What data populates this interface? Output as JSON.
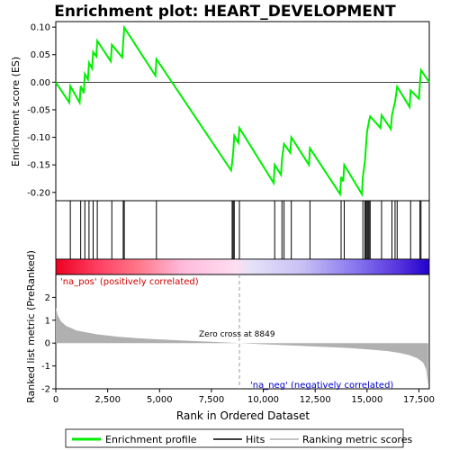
{
  "chart_data": {
    "type": "line",
    "title": "Enrichment plot: HEART_DEVELOPMENT",
    "xlabel": "Rank in Ordered Dataset",
    "ylabel_top": "Enrichment score (ES)",
    "ylabel_bottom": "Ranked list metric (PreRanked)",
    "xlim": [
      0,
      18000
    ],
    "ylim_top": [
      -0.215,
      0.11
    ],
    "ylim_bottom": [
      -2.0,
      3.0
    ],
    "x_ticks": [
      0,
      2500,
      5000,
      7500,
      10000,
      12500,
      15000,
      17500
    ],
    "x_tick_labels": [
      "0",
      "2,500",
      "5,000",
      "7,500",
      "10,000",
      "12,500",
      "15,000",
      "17,500"
    ],
    "y_ticks_top": [
      0.1,
      0.05,
      0.0,
      -0.05,
      -0.1,
      -0.15,
      -0.2
    ],
    "y_tick_labels_top": [
      "0.10",
      "0.05",
      "0.00",
      "-0.05",
      "-0.10",
      "-0.15",
      "-0.20"
    ],
    "y_ticks_bottom": [
      2,
      1,
      0,
      -1,
      -2
    ],
    "y_tick_labels_bottom": [
      "2",
      "1",
      "0",
      "-1",
      "-2"
    ],
    "zero_cross": 8849,
    "annotations": {
      "pos_label": "'na_pos' (positively correlated)",
      "neg_label": "'na_neg' (negatively correlated)",
      "zero_cross_label": "Zero cross at 8849"
    },
    "legend": {
      "placement": "bottom",
      "entries": [
        "Enrichment profile",
        "Hits",
        "Ranking metric scores"
      ]
    },
    "hits": [
      0,
      700,
      1200,
      1400,
      1600,
      1800,
      2000,
      2700,
      3250,
      3300,
      4850,
      8500,
      8550,
      8600,
      8850,
      10550,
      10900,
      11000,
      11350,
      12250,
      13750,
      13900,
      14800,
      14900,
      14950,
      15000,
      15050,
      15100,
      15150,
      15700,
      16200,
      16350,
      16450,
      17100,
      17550,
      17600
    ],
    "es_profile": [
      [
        0,
        0.0
      ],
      [
        650,
        -0.037
      ],
      [
        700,
        -0.007
      ],
      [
        1150,
        -0.037
      ],
      [
        1200,
        -0.007
      ],
      [
        1350,
        -0.02
      ],
      [
        1400,
        0.015
      ],
      [
        1550,
        0.005
      ],
      [
        1600,
        0.035
      ],
      [
        1750,
        0.025
      ],
      [
        1800,
        0.055
      ],
      [
        1950,
        0.047
      ],
      [
        2000,
        0.075
      ],
      [
        2650,
        0.038
      ],
      [
        2700,
        0.068
      ],
      [
        3200,
        0.045
      ],
      [
        3250,
        0.072
      ],
      [
        3300,
        0.099
      ],
      [
        4800,
        0.012
      ],
      [
        4850,
        0.042
      ],
      [
        8450,
        -0.16
      ],
      [
        8500,
        -0.145
      ],
      [
        8550,
        -0.128
      ],
      [
        8600,
        -0.097
      ],
      [
        8800,
        -0.11
      ],
      [
        8850,
        -0.083
      ],
      [
        10500,
        -0.183
      ],
      [
        10550,
        -0.15
      ],
      [
        10850,
        -0.168
      ],
      [
        10900,
        -0.14
      ],
      [
        11000,
        -0.112
      ],
      [
        11300,
        -0.128
      ],
      [
        11350,
        -0.1
      ],
      [
        12200,
        -0.15
      ],
      [
        12250,
        -0.12
      ],
      [
        13700,
        -0.203
      ],
      [
        13750,
        -0.172
      ],
      [
        13850,
        -0.18
      ],
      [
        13900,
        -0.15
      ],
      [
        14750,
        -0.203
      ],
      [
        14800,
        -0.172
      ],
      [
        14900,
        -0.143
      ],
      [
        14950,
        -0.115
      ],
      [
        15000,
        -0.09
      ],
      [
        15100,
        -0.07
      ],
      [
        15150,
        -0.062
      ],
      [
        15650,
        -0.083
      ],
      [
        15700,
        -0.06
      ],
      [
        16150,
        -0.085
      ],
      [
        16200,
        -0.06
      ],
      [
        16350,
        -0.035
      ],
      [
        16450,
        -0.008
      ],
      [
        17050,
        -0.045
      ],
      [
        17100,
        -0.015
      ],
      [
        17500,
        -0.03
      ],
      [
        17550,
        -0.002
      ],
      [
        17600,
        0.022
      ],
      [
        18000,
        0.0
      ]
    ],
    "metric_curve": [
      [
        0,
        1.55
      ],
      [
        100,
        1.2
      ],
      [
        250,
        0.95
      ],
      [
        500,
        0.75
      ],
      [
        1000,
        0.55
      ],
      [
        2000,
        0.38
      ],
      [
        3000,
        0.28
      ],
      [
        4000,
        0.21
      ],
      [
        5000,
        0.16
      ],
      [
        6000,
        0.12
      ],
      [
        7000,
        0.08
      ],
      [
        8000,
        0.04
      ],
      [
        8849,
        0.0
      ],
      [
        10000,
        -0.05
      ],
      [
        11000,
        -0.09
      ],
      [
        12000,
        -0.13
      ],
      [
        13000,
        -0.17
      ],
      [
        14000,
        -0.21
      ],
      [
        15000,
        -0.27
      ],
      [
        16000,
        -0.35
      ],
      [
        16500,
        -0.42
      ],
      [
        17000,
        -0.52
      ],
      [
        17400,
        -0.65
      ],
      [
        17700,
        -0.85
      ],
      [
        17850,
        -1.15
      ],
      [
        17950,
        -1.85
      ]
    ],
    "colors": {
      "es_line": "#00ee00",
      "hit_line": "#000000",
      "metric_fill": "#b0b0b0",
      "pos_text": "#cc0000",
      "neg_text": "#0000cc",
      "zero_line": "#999999",
      "band_pos": "#ff0033",
      "band_neg": "#2200dd"
    }
  }
}
